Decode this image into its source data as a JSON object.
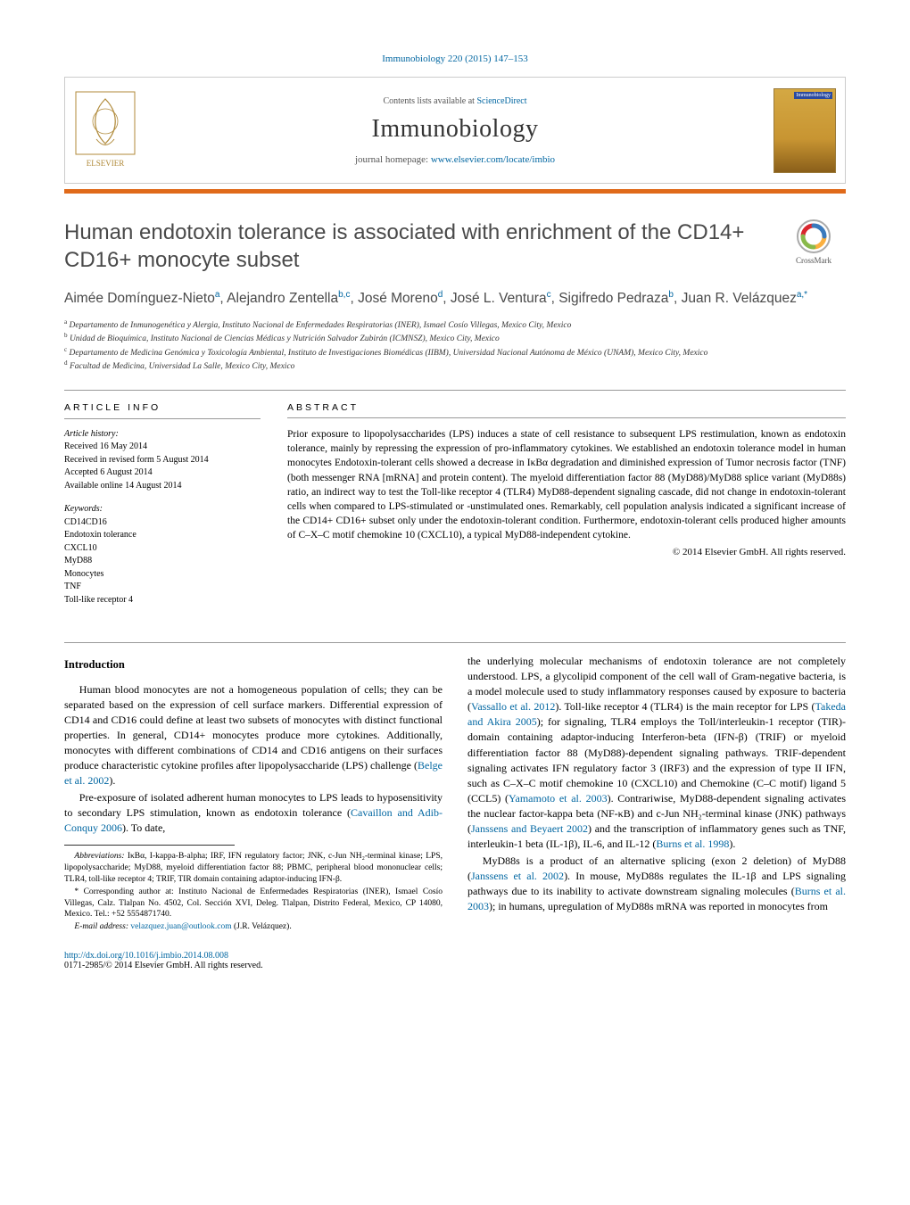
{
  "header": {
    "citation": "Immunobiology 220 (2015) 147–153",
    "contents_prefix": "Contents lists available at ",
    "contents_link": "ScienceDirect",
    "journal": "Immunobiology",
    "homepage_prefix": "journal homepage: ",
    "homepage_url": "www.elsevier.com/locate/imbio"
  },
  "crossmark_label": "CrossMark",
  "title": "Human endotoxin tolerance is associated with enrichment of the CD14+ CD16+ monocyte subset",
  "authors_html": "Aimée Domínguez-Nieto<sup>a</sup>, Alejandro Zentella<sup>b,c</sup>, José Moreno<sup>d</sup>, José L. Ventura<sup>c</sup>, Sigifredo Pedraza<sup>b</sup>, Juan R. Velázquez<sup>a,*</sup>",
  "affiliations": [
    "a Departamento de Inmunogenética y Alergia, Instituto Nacional de Enfermedades Respiratorias (INER), Ismael Cosío Villegas, Mexico City, Mexico",
    "b Unidad de Bioquímica, Instituto Nacional de Ciencias Médicas y Nutrición Salvador Zubirán (ICMNSZ), Mexico City, Mexico",
    "c Departamento de Medicina Genómica y Toxicología Ambiental, Instituto de Investigaciones Biomédicas (IIBM), Universidad Nacional Autónoma de México (UNAM), Mexico City, Mexico",
    "d Facultad de Medicina, Universidad La Salle, Mexico City, Mexico"
  ],
  "article_info": {
    "heading": "article info",
    "history_label": "Article history:",
    "history": [
      "Received 16 May 2014",
      "Received in revised form 5 August 2014",
      "Accepted 6 August 2014",
      "Available online 14 August 2014"
    ],
    "keywords_label": "Keywords:",
    "keywords": [
      "CD14CD16",
      "Endotoxin tolerance",
      "CXCL10",
      "MyD88",
      "Monocytes",
      "TNF",
      "Toll-like receptor 4"
    ]
  },
  "abstract": {
    "heading": "abstract",
    "text": "Prior exposure to lipopolysaccharides (LPS) induces a state of cell resistance to subsequent LPS restimulation, known as endotoxin tolerance, mainly by repressing the expression of pro-inflammatory cytokines. We established an endotoxin tolerance model in human monocytes Endotoxin-tolerant cells showed a decrease in IκBα degradation and diminished expression of Tumor necrosis factor (TNF) (both messenger RNA [mRNA] and protein content). The myeloid differentiation factor 88 (MyD88)/MyD88 splice variant (MyD88s) ratio, an indirect way to test the Toll-like receptor 4 (TLR4) MyD88-dependent signaling cascade, did not change in endotoxin-tolerant cells when compared to LPS-stimulated or -unstimulated ones. Remarkably, cell population analysis indicated a significant increase of the CD14+ CD16+ subset only under the endotoxin-tolerant condition. Furthermore, endotoxin-tolerant cells produced higher amounts of C–X–C motif chemokine 10 (CXCL10), a typical MyD88-independent cytokine.",
    "copyright": "© 2014 Elsevier GmbH. All rights reserved."
  },
  "intro_heading": "Introduction",
  "intro_p1": "Human blood monocytes are not a homogeneous population of cells; they can be separated based on the expression of cell surface markers. Differential expression of CD14 and CD16 could define at least two subsets of monocytes with distinct functional properties. In general, CD14+ monocytes produce more cytokines. Additionally, monocytes with different combinations of CD14 and CD16 antigens on their surfaces produce characteristic cytokine profiles after lipopolysaccharide (LPS) challenge (",
  "intro_p1_link": "Belge et al. 2002",
  "intro_p1_end": ").",
  "intro_p2a": "Pre-exposure of isolated adherent human monocytes to LPS leads to hyposensitivity to secondary LPS stimulation, known as endotoxin tolerance (",
  "intro_p2_link": "Cavaillon and Adib-Conquy 2006",
  "intro_p2b": "). To date,",
  "col2_p1a": "the underlying molecular mechanisms of endotoxin tolerance are not completely understood. LPS, a glycolipid component of the cell wall of Gram-negative bacteria, is a model molecule used to study inflammatory responses caused by exposure to bacteria (",
  "col2_link1": "Vassallo et al. 2012",
  "col2_p1b": "). Toll-like receptor 4 (TLR4) is the main receptor for LPS (",
  "col2_link2": "Takeda and Akira 2005",
  "col2_p1c": "); for signaling, TLR4 employs the Toll/interleukin-1 receptor (TIR)-domain containing adaptor-inducing Interferon-beta (IFN-β) (TRIF) or myeloid differentiation factor 88 (MyD88)-dependent signaling pathways. TRIF-dependent signaling activates IFN regulatory factor 3 (IRF3) and the expression of type II IFN, such as C–X–C motif chemokine 10 (CXCL10) and Chemokine (C–C motif) ligand 5 (CCL5) (",
  "col2_link3": "Yamamoto et al. 2003",
  "col2_p1d": "). Contrariwise, MyD88-dependent signaling activates the nuclear factor-kappa beta (NF-κB) and c-Jun NH₂-terminal kinase (JNK) pathways (",
  "col2_link4": "Janssens and Beyaert 2002",
  "col2_p1e": ") and the transcription of inflammatory genes such as TNF, interleukin-1 beta (IL-1β), IL-6, and IL-12 (",
  "col2_link5": "Burns et al. 1998",
  "col2_p1f": ").",
  "col2_p2a": "MyD88s is a product of an alternative splicing (exon 2 deletion) of MyD88 (",
  "col2_link6": "Janssens et al. 2002",
  "col2_p2b": "). In mouse, MyD88s regulates the IL-1β and LPS signaling pathways due to its inability to activate downstream signaling molecules (",
  "col2_link7": "Burns et al. 2003",
  "col2_p2c": "); in humans, upregulation of MyD88s mRNA was reported in monocytes from",
  "footnotes": {
    "abbrev_label": "Abbreviations:",
    "abbrev_text": " IκBα, I-kappa-B-alpha; IRF, IFN regulatory factor; JNK, c-Jun NH₂-terminal kinase; LPS, lipopolysaccharide; MyD88, myeloid differentiation factor 88; PBMC, peripheral blood mononuclear cells; TLR4, toll-like receptor 4; TRIF, TIR domain containing adaptor-inducing IFN-β.",
    "corr_text": "* Corresponding author at: Instituto Nacional de Enfermedades Respiratorias (INER), Ismael Cosío Villegas, Calz. Tlalpan No. 4502, Col. Sección XVI, Deleg. Tlalpan, Distrito Federal, Mexico, CP 14080, Mexico. Tel.: +52 5554871740.",
    "email_label": "E-mail address: ",
    "email": "velazquez.juan@outlook.com",
    "email_suffix": " (J.R. Velázquez)."
  },
  "doi": {
    "url": "http://dx.doi.org/10.1016/j.imbio.2014.08.008",
    "issn_line": "0171-2985/© 2014 Elsevier GmbH. All rights reserved."
  },
  "colors": {
    "link": "#0066a1",
    "accent_bar": "#e06a1a",
    "title_text": "#494949",
    "body_text": "#000000",
    "border": "#cccccc"
  }
}
